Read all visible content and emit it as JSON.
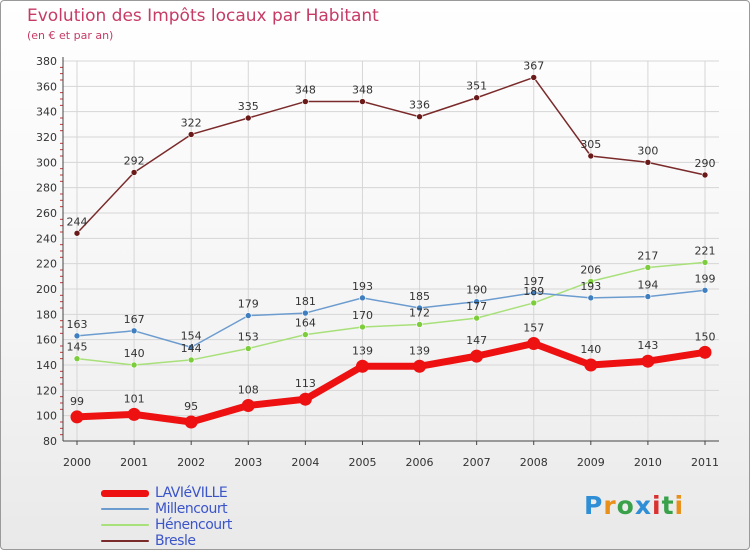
{
  "title": "Evolution des Impôts locaux par Habitant",
  "subtitle": "(en € et par an)",
  "logo_text": "Proxiti",
  "chart_data": {
    "type": "line",
    "x": [
      "2000",
      "2001",
      "2002",
      "2003",
      "2004",
      "2005",
      "2006",
      "2007",
      "2008",
      "2009",
      "2010",
      "2011"
    ],
    "ylim": [
      80,
      380
    ],
    "ytick_step": 20,
    "grid": true,
    "legend_position": "bottom-left",
    "series": [
      {
        "name": "LAVIéVILLE",
        "color": "#ee1111",
        "values": [
          99,
          101,
          95,
          108,
          113,
          139,
          139,
          147,
          157,
          140,
          143,
          150
        ]
      },
      {
        "name": "Millencourt",
        "color": "#6c9ccf",
        "marker": "#3f7fc0",
        "values": [
          163,
          167,
          154,
          179,
          181,
          193,
          185,
          190,
          197,
          193,
          194,
          199
        ]
      },
      {
        "name": "Hénencourt",
        "color": "#a8e07a",
        "marker": "#7ccc3c",
        "values": [
          145,
          140,
          144,
          153,
          164,
          170,
          172,
          177,
          189,
          206,
          217,
          221
        ]
      },
      {
        "name": "Bresle",
        "color": "#7a2a2a",
        "marker": "#6b1a1a",
        "values": [
          244,
          292,
          322,
          335,
          348,
          348,
          336,
          351,
          367,
          305,
          300,
          290
        ]
      }
    ]
  }
}
